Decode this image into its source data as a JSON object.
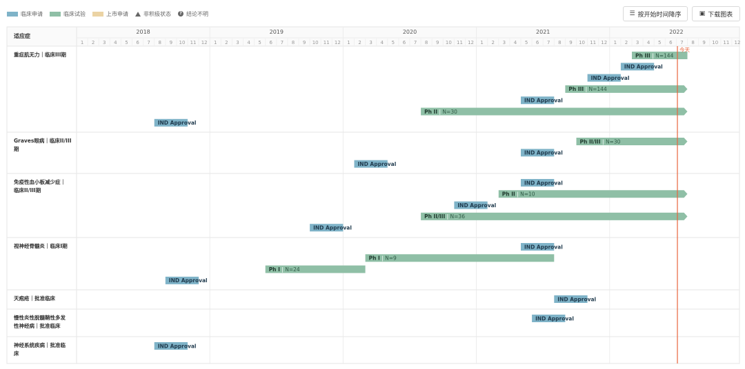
{
  "legend": [
    {
      "label": "临床申请",
      "color": "#7fb3c8",
      "kind": "swatch"
    },
    {
      "label": "临床试验",
      "color": "#8fbfa6",
      "kind": "swatch"
    },
    {
      "label": "上市申请",
      "color": "#ebd3a4",
      "kind": "swatch"
    },
    {
      "label": "非积极状态",
      "kind": "triangle-icon"
    },
    {
      "label": "结论不明",
      "kind": "question-icon"
    }
  ],
  "toolbar": {
    "sort_label": "按开始时间降序",
    "sort_icon": "sort-list-icon",
    "download_label": "下载图表",
    "download_icon": "download-image-icon"
  },
  "chart_data": {
    "type": "gantt",
    "column_header": "适应症",
    "years": [
      "2018",
      "2019",
      "2020",
      "2021",
      "2022"
    ],
    "months": [
      "1",
      "2",
      "3",
      "4",
      "5",
      "6",
      "7",
      "8",
      "9",
      "10",
      "11",
      "12"
    ],
    "time_range": [
      "2018-01",
      "2022-12"
    ],
    "today": {
      "label": "今天",
      "date": "2022-07",
      "color": "#e8643c"
    },
    "colors": {
      "ind": "#7fb3c8",
      "trial": "#8fbfa6",
      "market": "#ebd3a4"
    },
    "rows": [
      {
        "label": "重症肌无力｜临床III期",
        "label_lines": [
          "重症肌无力｜临床III期"
        ],
        "bars": [
          {
            "kind": "trial",
            "phase": "Ph III",
            "n": "N=144",
            "start": "2022-03",
            "end": "2022-07",
            "ongoing": false
          },
          {
            "kind": "ind",
            "label": "IND Approval",
            "start": "2022-02",
            "end": "2022-04"
          },
          {
            "kind": "ind",
            "label": "IND Approval",
            "start": "2021-11",
            "end": "2022-01"
          },
          {
            "kind": "trial",
            "phase": "Ph III",
            "n": "N=144",
            "start": "2021-09",
            "end": "2022-07",
            "ongoing": true
          },
          {
            "kind": "ind",
            "label": "IND Approval",
            "start": "2021-05",
            "end": "2021-07"
          },
          {
            "kind": "trial",
            "phase": "Ph II",
            "n": "N=30",
            "start": "2020-08",
            "end": "2022-07",
            "ongoing": true
          },
          {
            "kind": "ind",
            "label": "IND Approval",
            "start": "2018-08",
            "end": "2018-10"
          }
        ]
      },
      {
        "label": "Graves眼病｜临床II/III期",
        "label_lines": [
          "Graves眼病｜临床II/III",
          "期"
        ],
        "bars": [
          {
            "kind": "trial",
            "phase": "Ph II/III",
            "n": "N=30",
            "start": "2021-10",
            "end": "2022-07",
            "ongoing": true
          },
          {
            "kind": "ind",
            "label": "IND Approval",
            "start": "2021-05",
            "end": "2021-07"
          },
          {
            "kind": "ind",
            "label": "IND Approval",
            "start": "2020-02",
            "end": "2020-04"
          }
        ]
      },
      {
        "label": "免疫性血小板减少症｜临床II/III期",
        "label_lines": [
          "免疫性血小板减少症｜",
          "临床II/III期"
        ],
        "bars": [
          {
            "kind": "ind",
            "label": "IND Approval",
            "start": "2021-05",
            "end": "2021-07"
          },
          {
            "kind": "trial",
            "phase": "Ph II",
            "n": "N=10",
            "start": "2021-03",
            "end": "2022-07",
            "ongoing": true
          },
          {
            "kind": "ind",
            "label": "IND Approval",
            "start": "2020-11",
            "end": "2021-01"
          },
          {
            "kind": "trial",
            "phase": "Ph II/III",
            "n": "N=36",
            "start": "2020-08",
            "end": "2022-07",
            "ongoing": true
          },
          {
            "kind": "ind",
            "label": "IND Approval",
            "start": "2019-10",
            "end": "2019-12"
          }
        ]
      },
      {
        "label": "视神经脊髓炎｜临床I期",
        "label_lines": [
          "视神经脊髓炎｜临床I期"
        ],
        "bars": [
          {
            "kind": "ind",
            "label": "IND Approval",
            "start": "2021-05",
            "end": "2021-07"
          },
          {
            "kind": "trial",
            "phase": "Ph I",
            "n": "N=9",
            "start": "2020-03",
            "end": "2021-07",
            "ongoing": false
          },
          {
            "kind": "trial",
            "phase": "Ph I",
            "n": "N=24",
            "start": "2019-06",
            "end": "2020-02",
            "ongoing": false
          },
          {
            "kind": "ind",
            "label": "IND Approval",
            "start": "2018-09",
            "end": "2018-11"
          }
        ]
      },
      {
        "label": "天疱疮｜批准临床",
        "label_lines": [
          "天疱疮｜批准临床"
        ],
        "bars": [
          {
            "kind": "ind",
            "label": "IND Approval",
            "start": "2021-08",
            "end": "2021-10"
          }
        ]
      },
      {
        "label": "慢性炎性脱髓鞘性多发性神经病｜批准临床",
        "label_lines": [
          "慢性炎性脱髓鞘性多发",
          "性神经病｜批准临床"
        ],
        "bars": [
          {
            "kind": "ind",
            "label": "IND Approval",
            "start": "2021-06",
            "end": "2021-08"
          }
        ]
      },
      {
        "label": "神经系统疾病｜批准临床",
        "label_lines": [
          "神经系统疾病｜批准临",
          "床"
        ],
        "bars": [
          {
            "kind": "ind",
            "label": "IND Approval",
            "start": "2018-08",
            "end": "2018-10"
          }
        ]
      }
    ]
  }
}
